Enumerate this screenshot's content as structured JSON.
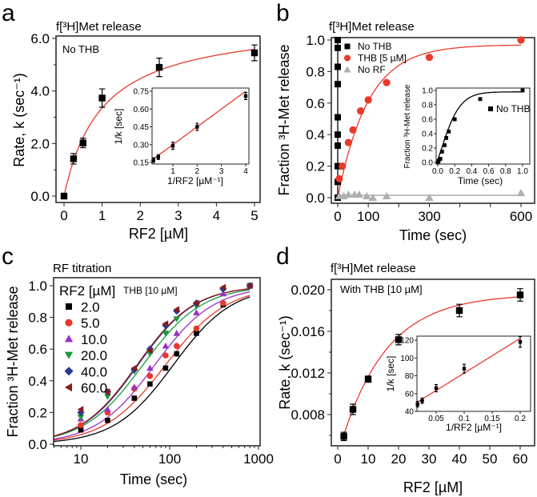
{
  "panels": {
    "a": {
      "letter": "a",
      "title": "f[³H]Met release",
      "annotation": "No THB"
    },
    "b": {
      "letter": "b",
      "title": "f[³H]Met release"
    },
    "c": {
      "letter": "c",
      "title": "RF titration",
      "legend_header": "RF2 [µM]",
      "legend_sub": "THB [10 µM]"
    },
    "d": {
      "letter": "d",
      "title": "f[³H]Met release",
      "annotation": "With THB [10 µM]"
    }
  },
  "chart_data": [
    {
      "panel": "a",
      "type": "scatter",
      "title": "f[³H]Met release",
      "xlabel": "RF2 [µM]",
      "ylabel": "Rate, k (sec⁻¹)",
      "xticks": [
        0,
        1,
        2,
        3,
        4,
        5
      ],
      "xtick_labels": [
        "0",
        "1",
        "2",
        "3",
        "4",
        "5"
      ],
      "yticks": [
        0,
        2,
        4,
        6
      ],
      "ytick_labels": [
        "0.0",
        "2.0",
        "4.0",
        "6.0"
      ],
      "yminor": [
        1,
        3,
        5
      ],
      "series": [
        {
          "name": "No THB",
          "marker": "square",
          "color": "#000000",
          "x": [
            0,
            0.25,
            0.5,
            1,
            2.5,
            5
          ],
          "y": [
            0,
            1.42,
            2.02,
            3.73,
            4.9,
            5.45
          ],
          "err": [
            0.05,
            0.2,
            0.18,
            0.35,
            0.35,
            0.3
          ]
        }
      ],
      "fits": [
        {
          "model": "hyperbola",
          "kmax": 6.7,
          "K": 1.0,
          "range": [
            0,
            5
          ],
          "color": "#e8392b"
        }
      ],
      "inset": {
        "xlabel": "1/RF2 [µM⁻¹]",
        "ylabel": "1/k [sec]",
        "xticks": [
          1,
          2,
          3,
          4
        ],
        "xtick_labels": [
          "1",
          "2",
          "3",
          "4"
        ],
        "yticks": [
          0.15,
          0.3,
          0.45,
          0.6,
          0.75
        ],
        "ytick_labels": [
          "0.15",
          "0.30",
          "0.45",
          "0.60",
          "0.75"
        ],
        "series": [
          {
            "name": "No THB",
            "marker": "square",
            "color": "#000000",
            "x": [
              0.2,
              0.4,
              1,
              2,
              4
            ],
            "y": [
              0.17,
              0.195,
              0.29,
              0.45,
              0.71
            ],
            "err": [
              0.02,
              0.02,
              0.03,
              0.03,
              0.03
            ]
          }
        ],
        "fits": [
          {
            "model": "linear",
            "slope": 0.15,
            "intercept": 0.15,
            "range": [
              0.1,
              4
            ],
            "color": "#e8392b"
          }
        ]
      }
    },
    {
      "panel": "b",
      "type": "scatter",
      "title": "f[³H]Met release",
      "xlabel": "Time (sec)",
      "ylabel": "Fraction ³H-Met release",
      "xticks": [
        0,
        100,
        300,
        600
      ],
      "xtick_labels": [
        "0",
        "100",
        "300",
        "600"
      ],
      "xminor": [
        200,
        400,
        500
      ],
      "yticks": [
        0,
        0.2,
        0.4,
        0.6,
        0.8,
        1.0
      ],
      "ytick_labels": [
        "0.0",
        "0.2",
        "0.4",
        "0.6",
        "0.8",
        "1.0"
      ],
      "legend": [
        "No THB",
        "THB [5 µM]",
        "No RF"
      ],
      "series": [
        {
          "name": "No THB",
          "marker": "square",
          "color": "#000000",
          "x": [
            0,
            0,
            0,
            0,
            0,
            0,
            0,
            0,
            0,
            0
          ],
          "y": [
            0,
            0.1,
            0.2,
            0.33,
            0.4,
            0.51,
            0.72,
            0.83,
            0.95,
            1.0
          ]
        },
        {
          "name": "THB [5 µM]",
          "marker": "circle",
          "color": "#e8392b",
          "x": [
            5,
            15,
            35,
            50,
            75,
            100,
            160,
            300,
            600
          ],
          "y": [
            0.12,
            0.2,
            0.35,
            0.43,
            0.55,
            0.62,
            0.73,
            0.89,
            1.0
          ]
        },
        {
          "name": "No RF",
          "marker": "triangle-up",
          "color": "#b0b0b0",
          "x": [
            5,
            20,
            35,
            55,
            70,
            95,
            115,
            160,
            300,
            600
          ],
          "y": [
            0.01,
            0.01,
            0.02,
            0.02,
            0.02,
            0.01,
            0.0,
            0.01,
            0.0,
            0.03
          ]
        }
      ],
      "fits": [
        {
          "model": "vertical",
          "x": 0,
          "range": [
            0,
            1
          ],
          "color": "#000000"
        },
        {
          "model": "exp",
          "amp": 0.97,
          "tau": 100,
          "range": [
            0,
            600
          ],
          "color": "#e8392b"
        },
        {
          "model": "constant",
          "value": 0.015,
          "range": [
            0,
            600
          ],
          "color": "#999999"
        }
      ],
      "inset": {
        "xlabel": "Time (sec)",
        "ylabel": "Fraction ³H-Met release",
        "legend": [
          "No THB"
        ],
        "xticks": [
          0,
          0.2,
          0.4,
          0.6,
          0.8,
          1.0
        ],
        "xtick_labels": [
          "0.0",
          "0.2",
          "0.4",
          "0.6",
          "0.8",
          "1.0"
        ],
        "yticks": [
          0,
          0.2,
          0.4,
          0.6,
          0.8,
          1.0
        ],
        "ytick_labels": [
          "0.0",
          "0.2",
          "0.4",
          "0.6",
          "0.8",
          "1.0"
        ],
        "series": [
          {
            "name": "No THB",
            "marker": "square",
            "color": "#000000",
            "x": [
              0,
              0.01,
              0.03,
              0.05,
              0.08,
              0.1,
              0.13,
              0.2,
              0.5,
              1.0
            ],
            "y": [
              0,
              0.02,
              0.05,
              0.15,
              0.24,
              0.34,
              0.43,
              0.6,
              0.88,
              1.0
            ]
          }
        ],
        "fits": [
          {
            "model": "stretched",
            "amp": 0.98,
            "tau": 0.2,
            "n": 1.35,
            "x0": -0.02,
            "range": [
              -0.02,
              1.0
            ],
            "color": "#000000"
          }
        ]
      }
    },
    {
      "panel": "c",
      "type": "line",
      "xscale": "log",
      "title": "RF titration",
      "xlabel": "Time (sec)",
      "ylabel": "Fraction ³H-Met release",
      "xticks": [
        10,
        100,
        1000
      ],
      "xtick_labels": [
        "10",
        "100",
        "1000"
      ],
      "yticks": [
        0,
        0.2,
        0.4,
        0.6,
        0.8,
        1.0
      ],
      "ytick_labels": [
        "0.0",
        "0.2",
        "0.4",
        "0.6",
        "0.8",
        "1.0"
      ],
      "legend_title": "RF2 [µM]",
      "legend_subtitle": "THB [10 µM]",
      "series": [
        {
          "name": "2.0",
          "marker": "square",
          "color": "#000000",
          "x": [
            10,
            20,
            40,
            60,
            90,
            120,
            200,
            400,
            800
          ],
          "y": [
            0.09,
            0.15,
            0.29,
            0.38,
            0.48,
            0.57,
            0.7,
            0.88,
            1.0
          ],
          "t50": 110,
          "n": 1.3
        },
        {
          "name": "5.0",
          "marker": "circle",
          "color": "#e8392b",
          "x": [
            10,
            20,
            40,
            60,
            90,
            120,
            200,
            400,
            800
          ],
          "y": [
            0.12,
            0.2,
            0.35,
            0.43,
            0.56,
            0.62,
            0.73,
            0.89,
            1.0
          ],
          "t50": 90,
          "n": 1.25
        },
        {
          "name": "10.0",
          "marker": "triangle-up",
          "color": "#9b30c8",
          "x": [
            10,
            20,
            40,
            60,
            90,
            120,
            200,
            400,
            800
          ],
          "y": [
            0.16,
            0.22,
            0.36,
            0.48,
            0.62,
            0.7,
            0.83,
            0.95,
            1.0
          ],
          "t50": 68,
          "n": 1.3
        },
        {
          "name": "20.0",
          "marker": "triangle-down",
          "color": "#1a9c3c",
          "x": [
            10,
            20,
            40,
            60,
            90,
            120,
            200,
            400,
            800
          ],
          "y": [
            0.17,
            0.3,
            0.46,
            0.57,
            0.7,
            0.79,
            0.87,
            0.97,
            1.0
          ],
          "t50": 50,
          "n": 1.3
        },
        {
          "name": "40.0",
          "marker": "diamond",
          "color": "#2b3a8f",
          "x": [
            10,
            20,
            40,
            60,
            90,
            120,
            200,
            400,
            800
          ],
          "y": [
            0.2,
            0.33,
            0.47,
            0.6,
            0.75,
            0.84,
            0.89,
            0.98,
            1.0
          ],
          "t50": 44,
          "n": 1.35
        },
        {
          "name": "60.0",
          "marker": "triangle-left",
          "color": "#8b1a1a",
          "x": [
            10,
            20,
            40,
            60,
            90,
            120,
            200,
            400,
            800
          ],
          "y": [
            0.22,
            0.33,
            0.48,
            0.59,
            0.76,
            0.85,
            0.89,
            0.99,
            1.0
          ],
          "t50": 43,
          "n": 1.35
        }
      ]
    },
    {
      "panel": "d",
      "type": "scatter",
      "title": "f[³H]Met release",
      "xlabel": "RF2 [µM]",
      "ylabel": "Rate, k (sec⁻¹)",
      "xticks": [
        0,
        10,
        20,
        30,
        40,
        50,
        60
      ],
      "xtick_labels": [
        "0",
        "10",
        "20",
        "30",
        "40",
        "50",
        "60"
      ],
      "yticks": [
        0.008,
        0.012,
        0.016,
        0.02
      ],
      "ytick_labels": [
        "0.008",
        "0.012",
        "0.016",
        "0.020"
      ],
      "yminor": [
        0.006,
        0.01,
        0.014,
        0.018
      ],
      "series": [
        {
          "name": "With THB [10 µM]",
          "marker": "square",
          "color": "#000000",
          "x": [
            2,
            5,
            10,
            20,
            40,
            60
          ],
          "y": [
            0.0059,
            0.0085,
            0.0114,
            0.0152,
            0.018,
            0.0195
          ],
          "err": [
            0.0004,
            0.0005,
            0.0003,
            0.0005,
            0.0006,
            0.0006
          ]
        }
      ],
      "fits": [
        {
          "model": "exp",
          "amp": 0.0155,
          "offset": 0.0196,
          "tau": 15,
          "range": [
            2,
            60
          ],
          "color": "#e8392b"
        }
      ],
      "inset": {
        "xlabel": "1/RF2 [µM⁻¹]",
        "ylabel": "1/k [sec]",
        "xticks": [
          0.05,
          0.1,
          0.15,
          0.2
        ],
        "xtick_labels": [
          "0.05",
          "0.1",
          "0.15",
          "0.2"
        ],
        "yticks": [
          40,
          60,
          80,
          100,
          120
        ],
        "ytick_labels": [
          "40",
          "60",
          "80",
          "100",
          "120"
        ],
        "series": [
          {
            "name": "With THB",
            "marker": "square",
            "color": "#000000",
            "x": [
              0.0167,
              0.025,
              0.05,
              0.1,
              0.2
            ],
            "y": [
              48,
              52,
              66,
              88,
              118
            ],
            "err": [
              3,
              3,
              4,
              5,
              6
            ]
          }
        ],
        "fits": [
          {
            "model": "linear",
            "slope": 390,
            "intercept": 44,
            "range": [
              0.017,
              0.2
            ],
            "color": "#e8392b"
          }
        ]
      }
    }
  ]
}
